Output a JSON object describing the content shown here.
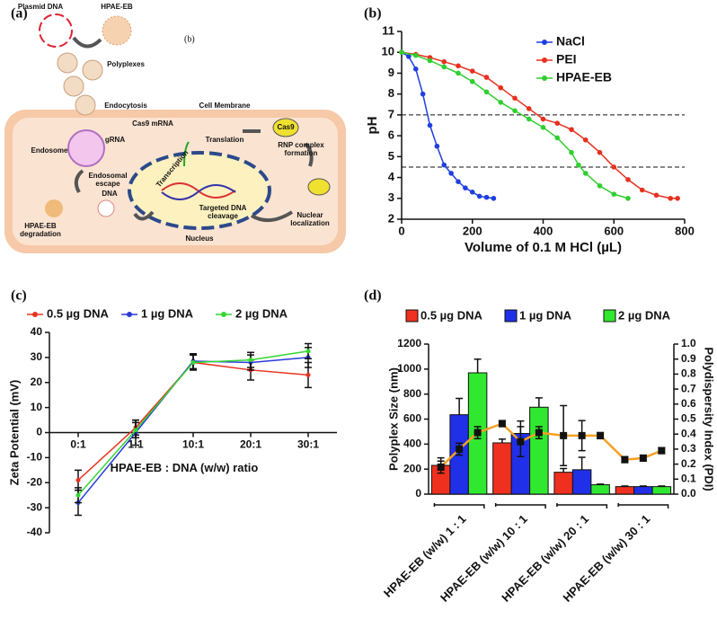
{
  "diagram": {
    "label": "(a)",
    "stray_label": "(b)",
    "plasmid_dna": "Plasmid DNA",
    "hpae_eb": "HPAE-EB",
    "polyplexes": "Polyplexes",
    "endocytosis": "Endocytosis",
    "cell_membrane": "Cell Membrane",
    "cas9_mrna": "Cas9 mRNA",
    "grna": "gRNA",
    "translation": "Translation",
    "cas9": "Cas9",
    "rnp": [
      "RNP complex",
      "formation"
    ],
    "endosome": "Endosome",
    "escape": [
      "Endosomal",
      "escape"
    ],
    "dna": "DNA",
    "transcription": "Transcription",
    "cleavage": [
      "Targeted DNA",
      "cleavage"
    ],
    "localization": [
      "Nuclear",
      "localization"
    ],
    "degradation": [
      "HPAE-EB",
      "degradation"
    ],
    "nucleus": "Nucleus"
  },
  "chart_data": [
    {
      "type": "line",
      "label": "(b)",
      "x_label": "Volume of 0.1 M HCl (µL)",
      "y_label": "pH",
      "xlim": [
        0,
        800
      ],
      "xticks": [
        0,
        200,
        400,
        600,
        800
      ],
      "ylim": [
        2,
        11
      ],
      "yticks": [
        2,
        3,
        4,
        5,
        6,
        7,
        8,
        9,
        10,
        11
      ],
      "reference_lines": [
        7,
        4.5
      ],
      "legend": "upper right",
      "series": [
        {
          "name": "NaCl",
          "color": "#1f3fe0",
          "x": [
            0,
            20,
            40,
            60,
            80,
            100,
            120,
            140,
            160,
            180,
            200,
            220,
            240,
            260
          ],
          "values": [
            10,
            9.8,
            9.2,
            8,
            6.5,
            5.5,
            4.6,
            4.2,
            3.8,
            3.5,
            3.3,
            3.1,
            3.05,
            3.0
          ]
        },
        {
          "name": "PEI",
          "color": "#e8301f",
          "x": [
            0,
            40,
            80,
            120,
            160,
            200,
            240,
            280,
            320,
            360,
            400,
            440,
            480,
            520,
            560,
            600,
            640,
            680,
            720,
            760,
            780
          ],
          "values": [
            10,
            9.9,
            9.75,
            9.55,
            9.35,
            9.1,
            8.8,
            8.3,
            7.8,
            7.3,
            6.8,
            6.6,
            6.3,
            5.8,
            5.2,
            4.5,
            3.9,
            3.4,
            3.15,
            3.0,
            3.0
          ]
        },
        {
          "name": "HPAE-EB",
          "color": "#2fcf2f",
          "x": [
            0,
            40,
            80,
            120,
            160,
            200,
            240,
            280,
            320,
            360,
            400,
            440,
            480,
            500,
            520,
            560,
            600,
            640
          ],
          "values": [
            10,
            9.85,
            9.6,
            9.3,
            9.0,
            8.6,
            8.1,
            7.6,
            7.2,
            6.8,
            6.4,
            5.9,
            5.2,
            4.6,
            4.2,
            3.6,
            3.2,
            3.0
          ]
        }
      ]
    },
    {
      "type": "line",
      "label": "(c)",
      "x_label": "HPAE-EB : DNA (w/w) ratio",
      "y_label": "Zeta Potential (mV)",
      "categories": [
        "0:1",
        "1:1",
        "10:1",
        "20:1",
        "30:1"
      ],
      "ylim": [
        -40,
        40
      ],
      "yticks": [
        -40,
        -30,
        -20,
        -10,
        0,
        10,
        20,
        30,
        40
      ],
      "legend": "top",
      "series": [
        {
          "name": "0.5 µg DNA",
          "color": "#e8301f",
          "values": [
            -19,
            2,
            28,
            25,
            23
          ],
          "errors": [
            4,
            3,
            3,
            4,
            5
          ]
        },
        {
          "name": "1 µg DNA",
          "color": "#2a3ad6",
          "values": [
            -28,
            0,
            28.5,
            28,
            30
          ],
          "errors": [
            5,
            5,
            3,
            3,
            4
          ]
        },
        {
          "name": "2 µg DNA",
          "color": "#33d633",
          "values": [
            -25,
            1,
            28,
            29,
            32.5
          ],
          "errors": [
            3,
            3,
            3,
            3,
            3
          ]
        }
      ]
    },
    {
      "type": "bar",
      "label": "(d)",
      "y_label": "Polyplex Size (nm)",
      "y2_label": "Polydispersity Index (PDI)",
      "categories": [
        "HPAE-EB (w/w) 1 : 1",
        "HPAE-EB (w/w) 10 : 1",
        "HPAE-EB (w/w) 20 : 1",
        "HPAE-EB (w/w) 30 : 1"
      ],
      "ylim": [
        0,
        1200
      ],
      "yticks": [
        0,
        200,
        400,
        600,
        800,
        1000,
        1200
      ],
      "y2lim": [
        0,
        1.0
      ],
      "y2ticks": [
        {
          "value": 0,
          "label": "0.0"
        },
        0.1,
        0.2,
        0.3,
        0.4,
        0.5,
        0.6,
        0.7,
        0.8,
        0.9,
        {
          "value": 1,
          "label": "1.0"
        }
      ],
      "legend": "top",
      "series": [
        {
          "name": "0.5 µg DNA",
          "color": "#f0301f",
          "values": [
            230,
            410,
            175,
            60
          ],
          "errors": [
            60,
            30,
            30,
            5
          ]
        },
        {
          "name": "1 µg DNA",
          "color": "#2030e8",
          "values": [
            635,
            485,
            195,
            60
          ],
          "errors": [
            130,
            100,
            100,
            5
          ]
        },
        {
          "name": "2 µg DNA",
          "color": "#30e830",
          "values": [
            970,
            695,
            75,
            60
          ],
          "errors": [
            110,
            75,
            5,
            5
          ]
        }
      ],
      "pdi": {
        "color": "#f5a020",
        "axis": "y2",
        "values": [
          0.18,
          0.3,
          0.41,
          0.47,
          0.35,
          0.41,
          0.39,
          0.39,
          0.39,
          0.23,
          0.24,
          0.29
        ],
        "errors": [
          0.04,
          0.04,
          0.04,
          0.02,
          0.1,
          0.04,
          0.2,
          0.1,
          0.02,
          0.02,
          0.02,
          0.02
        ]
      }
    }
  ]
}
